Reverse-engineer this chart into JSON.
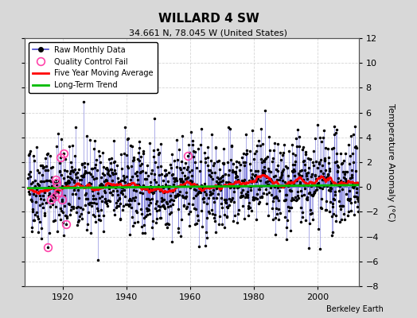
{
  "title": "WILLARD 4 SW",
  "subtitle": "34.661 N, 78.045 W (United States)",
  "ylabel": "Temperature Anomaly (°C)",
  "watermark": "Berkeley Earth",
  "xlim": [
    1908,
    2013
  ],
  "ylim": [
    -8,
    12
  ],
  "yticks": [
    -8,
    -6,
    -4,
    -2,
    0,
    2,
    4,
    6,
    8,
    10,
    12
  ],
  "xticks": [
    1920,
    1940,
    1960,
    1980,
    2000
  ],
  "start_year": 1909,
  "end_year": 2012,
  "seed": 42,
  "background_color": "#d8d8d8",
  "plot_bg_color": "#ffffff",
  "raw_line_color": "#4444cc",
  "raw_marker_color": "#000000",
  "ma_color": "#ff0000",
  "trend_color": "#00bb00",
  "qc_color": "#ff44aa",
  "legend_labels": [
    "Raw Monthly Data",
    "Quality Control Fail",
    "Five Year Moving Average",
    "Long-Term Trend"
  ]
}
